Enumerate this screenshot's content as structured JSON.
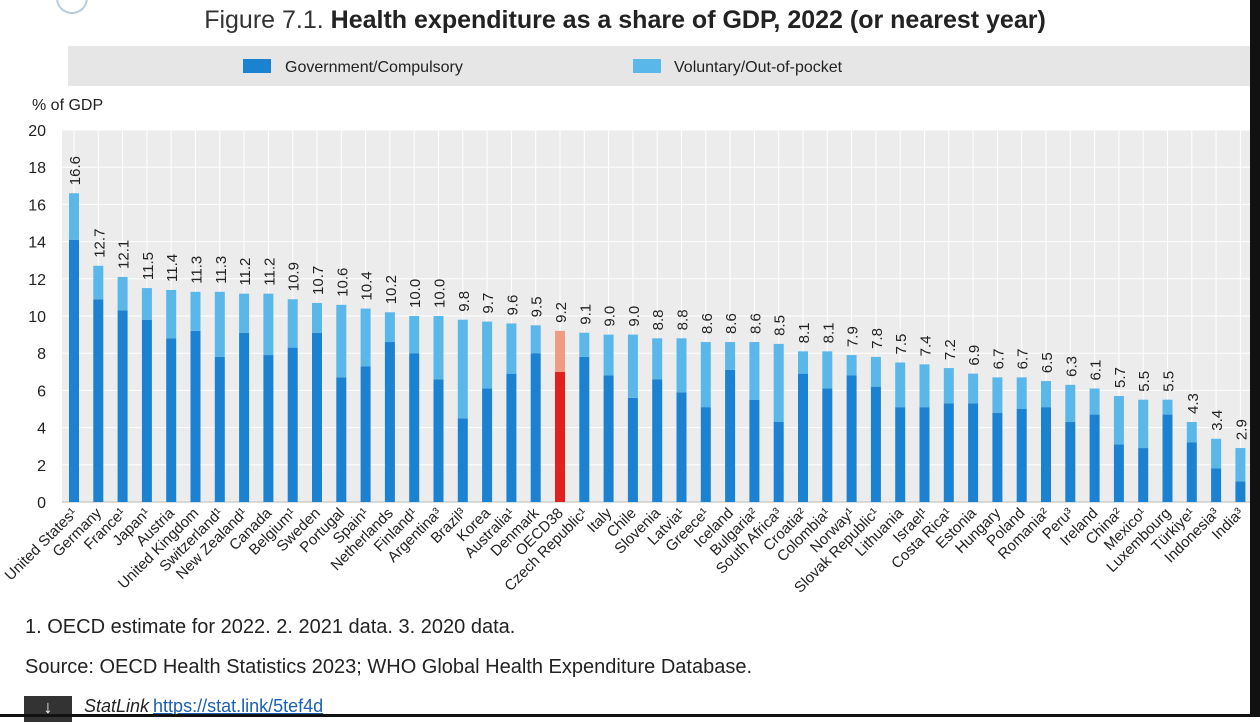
{
  "figure": {
    "label": "Figure 7.1.",
    "title": "Health expenditure as a share of GDP, 2022 (or nearest year)"
  },
  "notes": {
    "line1": "1. OECD estimate for 2022. 2. 2021 data. 3. 2020 data.",
    "source": "Source: OECD Health Statistics 2023; WHO Global Health Expenditure Database."
  },
  "statlink": {
    "label": "StatLink",
    "url": "https://stat.link/5tef4d"
  },
  "colors": {
    "gov": "#1b81d1",
    "vol": "#5ab7ea",
    "oecd_gov": "#e4201e",
    "oecd_vol": "#f29a82",
    "legend_bg": "#e6e6e6",
    "plot_bg": "#ececec"
  },
  "chart_data": {
    "type": "bar",
    "stacked": true,
    "title": "Health expenditure as a share of GDP, 2022 (or nearest year)",
    "ylabel": "% of GDP",
    "ylim": [
      0,
      20
    ],
    "yticks": [
      0,
      2,
      4,
      6,
      8,
      10,
      12,
      14,
      16,
      18,
      20
    ],
    "grid": true,
    "legend_position": "top",
    "highlight": "OECD38",
    "categories": [
      "United States¹",
      "Germany",
      "France¹",
      "Japan¹",
      "Austria",
      "United Kingdom",
      "Switzerland¹",
      "New Zealand¹",
      "Canada",
      "Belgium¹",
      "Sweden",
      "Portugal",
      "Spain¹",
      "Netherlands",
      "Finland¹",
      "Argentina³",
      "Brazil³",
      "Korea",
      "Australia¹",
      "Denmark",
      "OECD38",
      "Czech Republic¹",
      "Italy",
      "Chile",
      "Slovenia",
      "Latvia¹",
      "Greece¹",
      "Iceland",
      "Bulgaria²",
      "South Africa³",
      "Croatia²",
      "Colombia¹",
      "Norway¹",
      "Slovak Republic¹",
      "Lithuania",
      "Israel¹",
      "Costa Rica¹",
      "Estonia",
      "Hungary",
      "Poland",
      "Romania²",
      "Peru³",
      "Ireland",
      "China²",
      "Mexico¹",
      "Luxembourg",
      "Türkiye¹",
      "Indonesia³",
      "India³"
    ],
    "totals": [
      16.6,
      12.7,
      12.1,
      11.5,
      11.4,
      11.3,
      11.3,
      11.2,
      11.2,
      10.9,
      10.7,
      10.6,
      10.4,
      10.2,
      10.0,
      10.0,
      9.8,
      9.7,
      9.6,
      9.5,
      9.2,
      9.1,
      9.0,
      9.0,
      8.8,
      8.8,
      8.6,
      8.6,
      8.6,
      8.5,
      8.1,
      8.1,
      7.9,
      7.8,
      7.5,
      7.4,
      7.2,
      6.9,
      6.7,
      6.7,
      6.5,
      6.3,
      6.1,
      5.7,
      5.5,
      5.5,
      4.3,
      3.4,
      2.9
    ],
    "total_labels": [
      "16.6",
      "12.7",
      "12.1",
      "11.5",
      "11.4",
      "11.3",
      "11.3",
      "11.2",
      "11.2",
      "10.9",
      "10.7",
      "10.6",
      "10.4",
      "10.2",
      "10.0",
      "10.0",
      "9.8",
      "9.7",
      "9.6",
      "9.5",
      "9.2",
      "9.1",
      "9.0",
      "9.0",
      "8.8",
      "8.8",
      "8.6",
      "8.6",
      "8.6",
      "8.5",
      "8.1",
      "8.1",
      "7.9",
      "7.8",
      "7.5",
      "7.4",
      "7.2",
      "6.9",
      "6.7",
      "6.7",
      "6.5",
      "6.3",
      "6.1",
      "5.7",
      "5.5",
      "5.5",
      "4.3",
      "3.4",
      "2.9"
    ],
    "series": [
      {
        "name": "Government/Compulsory",
        "values": [
          14.1,
          10.9,
          10.3,
          9.8,
          8.8,
          9.2,
          7.8,
          9.1,
          7.9,
          8.3,
          9.1,
          6.7,
          7.3,
          8.6,
          8.0,
          6.6,
          4.5,
          6.1,
          6.9,
          8.0,
          7.0,
          7.8,
          6.8,
          5.6,
          6.6,
          5.9,
          5.1,
          7.1,
          5.5,
          4.3,
          6.9,
          6.1,
          6.8,
          6.2,
          5.1,
          5.1,
          5.3,
          5.3,
          4.8,
          5.0,
          5.1,
          4.3,
          4.7,
          3.1,
          2.9,
          4.7,
          3.2,
          1.8,
          1.1
        ]
      },
      {
        "name": "Voluntary/Out-of-pocket",
        "values": [
          2.5,
          1.8,
          1.8,
          1.7,
          2.6,
          2.1,
          3.5,
          2.1,
          3.3,
          2.6,
          1.6,
          3.9,
          3.1,
          1.6,
          2.0,
          3.4,
          5.3,
          3.6,
          2.7,
          1.5,
          2.2,
          1.3,
          2.2,
          3.4,
          2.2,
          2.9,
          3.5,
          1.5,
          3.1,
          4.2,
          1.2,
          2.0,
          1.1,
          1.6,
          2.4,
          2.3,
          1.9,
          1.6,
          1.9,
          1.7,
          1.4,
          2.0,
          1.4,
          2.6,
          2.6,
          0.8,
          1.1,
          1.6,
          1.8
        ]
      }
    ]
  }
}
